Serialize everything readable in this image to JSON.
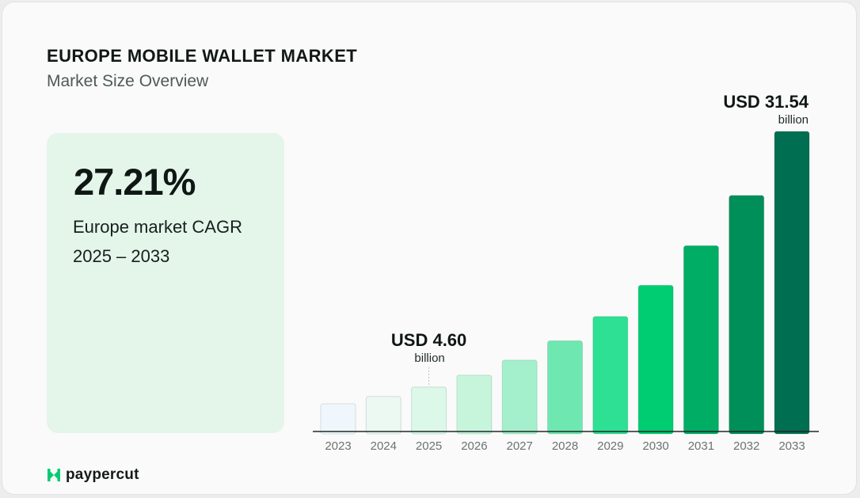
{
  "header": {
    "title": "EUROPE MOBILE WALLET MARKET",
    "subtitle": "Market Size Overview"
  },
  "kpi": {
    "value": "27.21%",
    "label_line1": "Europe market CAGR",
    "label_line2": "2025 – 2033"
  },
  "chart_data": {
    "type": "bar",
    "categories": [
      "2023",
      "2024",
      "2025",
      "2026",
      "2027",
      "2028",
      "2029",
      "2030",
      "2031",
      "2032",
      "2033"
    ],
    "values": [
      2.84,
      3.61,
      4.6,
      5.85,
      7.44,
      9.47,
      12.04,
      15.32,
      19.49,
      24.79,
      31.54
    ],
    "colors": [
      "#f0f7fc",
      "#ecf8f2",
      "#dcf8e9",
      "#c6f5dc",
      "#a5f0cc",
      "#6ee8b0",
      "#2ee093",
      "#00cc72",
      "#00ad64",
      "#008f59",
      "#006e51"
    ],
    "annotations": [
      {
        "category": "2025",
        "value_label": "USD 4.60",
        "unit_label": "billion"
      },
      {
        "category": "2033",
        "value_label": "USD 31.54",
        "unit_label": "billion"
      }
    ]
  },
  "brand": {
    "name": "paypercut",
    "icon": "paypercut-logo-icon",
    "accent": "#00cc72"
  }
}
